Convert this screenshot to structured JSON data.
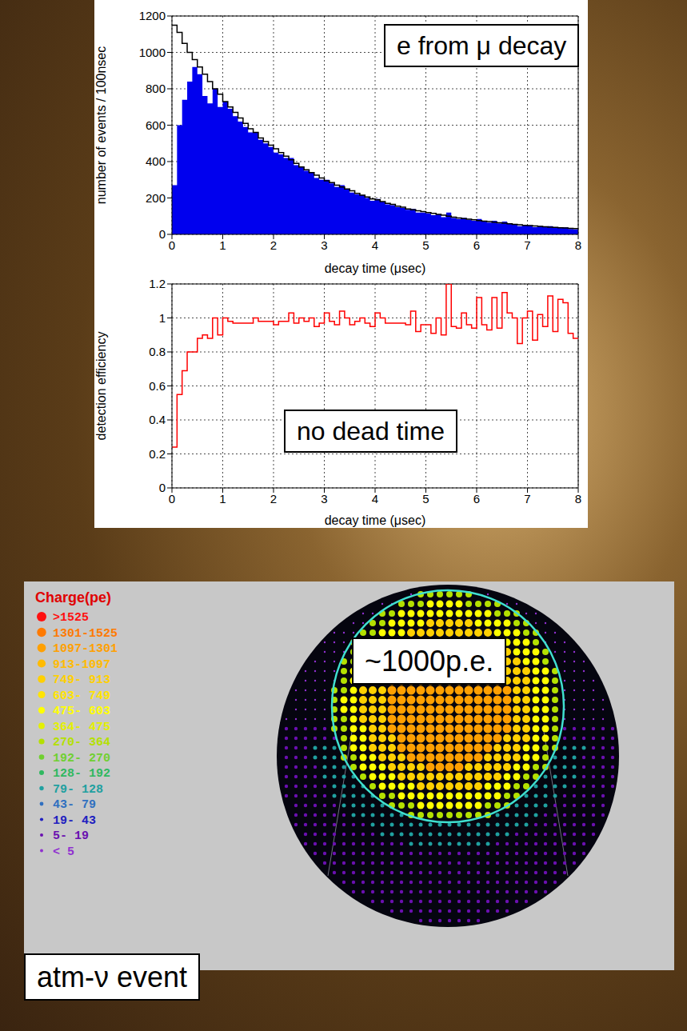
{
  "chart_data": [
    {
      "type": "histogram",
      "annotation": "e from μ decay",
      "xlabel": "decay time (μsec)",
      "ylabel": "number of events / 100nsec",
      "xlim": [
        0,
        8
      ],
      "xticks": [
        0,
        1,
        2,
        3,
        4,
        5,
        6,
        7,
        8
      ],
      "ylim": [
        0,
        1200
      ],
      "yticks": [
        0,
        200,
        400,
        600,
        800,
        1000,
        1200
      ],
      "grid": true,
      "bins": [
        0,
        0.1,
        0.2,
        0.3,
        0.4,
        0.5,
        0.6,
        0.7,
        0.8,
        0.9,
        1,
        1.1,
        1.2,
        1.3,
        1.4,
        1.5,
        1.6,
        1.7,
        1.8,
        1.9,
        2,
        2.1,
        2.2,
        2.3,
        2.4,
        2.5,
        2.6,
        2.7,
        2.8,
        2.9,
        3,
        3.1,
        3.2,
        3.3,
        3.4,
        3.5,
        3.6,
        3.7,
        3.8,
        3.9,
        4,
        4.1,
        4.2,
        4.3,
        4.4,
        4.5,
        4.6,
        4.7,
        4.8,
        4.9,
        5,
        5.1,
        5.2,
        5.3,
        5.4,
        5.5,
        5.6,
        5.7,
        5.8,
        5.9,
        6,
        6.1,
        6.2,
        6.3,
        6.4,
        6.5,
        6.6,
        6.7,
        6.8,
        6.9,
        7,
        7.1,
        7.2,
        7.3,
        7.4,
        7.5,
        7.6,
        7.7,
        7.8,
        7.9,
        8
      ],
      "series": [
        {
          "type": "histogram",
          "color": "#0000ee",
          "values": [
            270,
            600,
            740,
            840,
            920,
            880,
            760,
            720,
            800,
            700,
            730,
            690,
            650,
            620,
            590,
            560,
            560,
            520,
            500,
            480,
            450,
            440,
            420,
            420,
            380,
            370,
            350,
            340,
            310,
            300,
            300,
            280,
            260,
            270,
            250,
            230,
            220,
            215,
            200,
            185,
            195,
            180,
            165,
            160,
            150,
            145,
            135,
            140,
            120,
            120,
            115,
            105,
            110,
            95,
            120,
            90,
            85,
            90,
            80,
            75,
            85,
            70,
            65,
            75,
            60,
            70,
            60,
            55,
            45,
            50,
            50,
            40,
            45,
            40,
            45,
            35,
            40,
            38,
            30,
            28
          ]
        },
        {
          "type": "line",
          "line_style": "step",
          "color": "#000000",
          "values": [
            1150,
            1110,
            1050,
            1000,
            960,
            920,
            880,
            840,
            800,
            770,
            730,
            700,
            670,
            640,
            610,
            580,
            560,
            530,
            510,
            490,
            470,
            450,
            430,
            410,
            390,
            370,
            355,
            340,
            325,
            310,
            295,
            285,
            270,
            260,
            250,
            240,
            225,
            215,
            205,
            195,
            190,
            180,
            170,
            165,
            155,
            150,
            140,
            135,
            130,
            125,
            120,
            115,
            110,
            105,
            100,
            95,
            90,
            87,
            83,
            80,
            76,
            73,
            70,
            67,
            64,
            61,
            58,
            55,
            53,
            50,
            48,
            46,
            44,
            42,
            40,
            38,
            36,
            35,
            33,
            32
          ]
        }
      ]
    },
    {
      "type": "line",
      "line_style": "step",
      "color": "#ff0000",
      "annotation": "no dead time",
      "xlabel": "decay time (μsec)",
      "ylabel": "detection efficiency",
      "xlim": [
        0,
        8
      ],
      "xticks": [
        0,
        1,
        2,
        3,
        4,
        5,
        6,
        7,
        8
      ],
      "ylim": [
        0,
        1.2
      ],
      "yticks": [
        0,
        0.2,
        0.4,
        0.6,
        0.8,
        1,
        1.2
      ],
      "grid": true,
      "bins": [
        0,
        0.1,
        0.2,
        0.3,
        0.4,
        0.5,
        0.6,
        0.7,
        0.8,
        0.9,
        1,
        1.1,
        1.2,
        1.3,
        1.4,
        1.5,
        1.6,
        1.7,
        1.8,
        1.9,
        2,
        2.1,
        2.2,
        2.3,
        2.4,
        2.5,
        2.6,
        2.7,
        2.8,
        2.9,
        3,
        3.1,
        3.2,
        3.3,
        3.4,
        3.5,
        3.6,
        3.7,
        3.8,
        3.9,
        4,
        4.1,
        4.2,
        4.3,
        4.4,
        4.5,
        4.6,
        4.7,
        4.8,
        4.9,
        5,
        5.1,
        5.2,
        5.3,
        5.4,
        5.5,
        5.6,
        5.7,
        5.8,
        5.9,
        6,
        6.1,
        6.2,
        6.3,
        6.4,
        6.5,
        6.6,
        6.7,
        6.8,
        6.9,
        7,
        7.1,
        7.2,
        7.3,
        7.4,
        7.5,
        7.6,
        7.7,
        7.8,
        7.9,
        8
      ],
      "values": [
        0.24,
        0.55,
        0.69,
        0.8,
        0.8,
        0.88,
        0.9,
        0.88,
        1.0,
        0.9,
        1.0,
        0.98,
        0.97,
        0.97,
        0.97,
        0.97,
        1.0,
        0.98,
        0.98,
        0.98,
        0.96,
        0.98,
        0.98,
        1.03,
        0.97,
        1.0,
        0.98,
        1.0,
        0.95,
        0.97,
        1.03,
        0.98,
        0.96,
        1.04,
        1.0,
        0.96,
        0.98,
        1.0,
        0.97,
        0.95,
        1.03,
        1.0,
        0.97,
        0.97,
        0.97,
        0.97,
        0.96,
        1.04,
        0.92,
        0.96,
        0.96,
        0.91,
        1.0,
        0.9,
        1.2,
        0.95,
        0.94,
        1.03,
        0.96,
        0.94,
        1.12,
        0.96,
        0.93,
        1.12,
        0.94,
        1.15,
        1.03,
        1.0,
        0.85,
        1.0,
        1.04,
        0.87,
        1.02,
        0.95,
        1.13,
        0.92,
        1.11,
        1.09,
        0.91,
        0.88
      ]
    }
  ],
  "event_display": {
    "label": "atm-ν event",
    "annotation": "~1000p.e.",
    "charge_legend": {
      "title": "Charge(pe)",
      "entries": [
        {
          "label": ">1525",
          "color": "#ff1010"
        },
        {
          "label": "1301-1525",
          "color": "#ff7a00"
        },
        {
          "label": "1097-1301",
          "color": "#ffa000"
        },
        {
          "label": "913-1097",
          "color": "#ffbb00"
        },
        {
          "label": "749- 913",
          "color": "#ffd000"
        },
        {
          "label": "603- 749",
          "color": "#ffe400"
        },
        {
          "label": "475- 603",
          "color": "#ffff00"
        },
        {
          "label": "364- 475",
          "color": "#e4f000"
        },
        {
          "label": "270- 364",
          "color": "#b4e000"
        },
        {
          "label": "192- 270",
          "color": "#70d030"
        },
        {
          "label": "128- 192",
          "color": "#30b860"
        },
        {
          "label": "79- 128",
          "color": "#20a0a0"
        },
        {
          "label": "43- 79",
          "color": "#3070c0"
        },
        {
          "label": "19- 43",
          "color": "#2020c0"
        },
        {
          "label": "5- 19",
          "color": "#6a10b0"
        },
        {
          "label": "< 5",
          "color": "#9030d0"
        }
      ]
    }
  }
}
